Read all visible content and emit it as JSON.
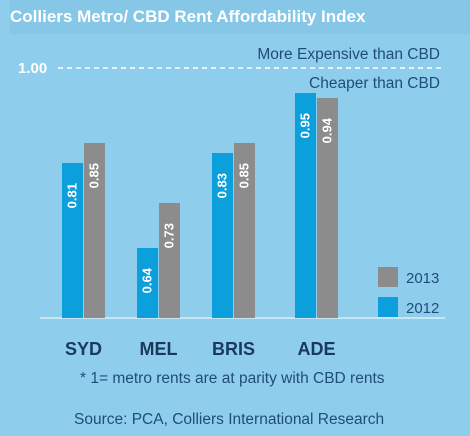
{
  "chart_data": {
    "type": "bar",
    "title": "Colliers Metro/ CBD Rent Affordability Index",
    "categories": [
      "SYD",
      "MEL",
      "BRIS",
      "ADE"
    ],
    "series": [
      {
        "name": "2012",
        "values": [
          0.81,
          0.64,
          0.83,
          0.95
        ],
        "value_labels": [
          "0.81",
          "0.64",
          "0.83",
          "0.95"
        ],
        "color": "#0b9fdc"
      },
      {
        "name": "2013",
        "values": [
          0.85,
          0.73,
          0.85,
          0.94
        ],
        "value_labels": [
          "0.85",
          "0.73",
          "0.85",
          "0.94"
        ],
        "color": "#8c8c8c"
      }
    ],
    "ylim": [
      0.5,
      1.05
    ],
    "reference_line": {
      "value": 1.0,
      "label": "1.00"
    },
    "annotations": {
      "above": "More Expensive than CBD",
      "below": "Cheaper than CBD"
    },
    "legend_placement": "bottom-right",
    "grid": false,
    "footnote": "* 1= metro rents are at parity with CBD rents",
    "source": "Source: PCA, Colliers International Research"
  }
}
